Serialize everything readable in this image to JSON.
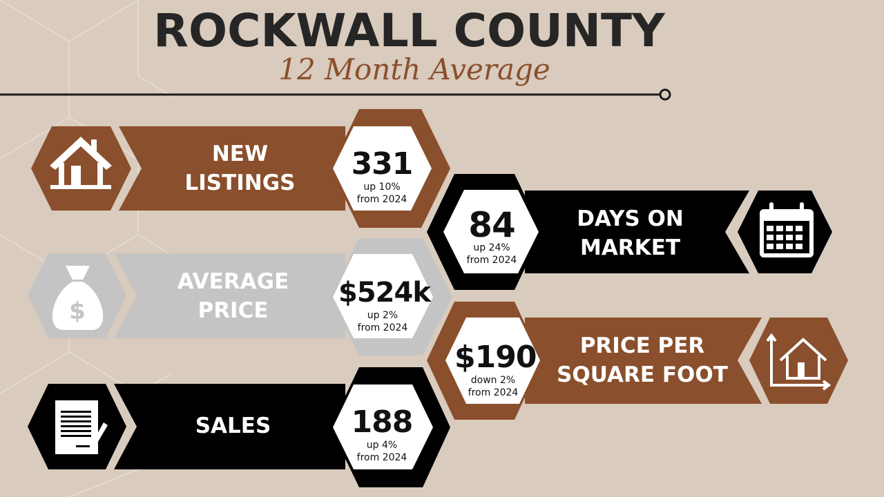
{
  "header": {
    "title": "ROCKWALL COUNTY",
    "subtitle": "12 Month Average"
  },
  "colors": {
    "background": "#d9cbbd",
    "brown": "#8a4f2c",
    "gray": "#c4c4c4",
    "black": "#000000",
    "title": "#262626"
  },
  "metrics": [
    {
      "label_line1": "NEW",
      "label_line2": "LISTINGS",
      "value": "331",
      "change": "up 10%",
      "period": "from 2024",
      "icon": "house-icon",
      "color": "brown"
    },
    {
      "label_line1": "AVERAGE",
      "label_line2": "PRICE",
      "value": "$524k",
      "change": "up 2%",
      "period": "from 2024",
      "icon": "money-bag-icon",
      "color": "gray"
    },
    {
      "label_line1": "SALES",
      "label_line2": "",
      "value": "188",
      "change": "up 4%",
      "period": "from 2024",
      "icon": "document-sign-icon",
      "color": "black"
    },
    {
      "label_line1": "DAYS ON",
      "label_line2": "MARKET",
      "value": "84",
      "change": "up 24%",
      "period": "from 2024",
      "icon": "calendar-icon",
      "color": "black"
    },
    {
      "label_line1": "PRICE PER",
      "label_line2": "SQUARE FOOT",
      "value": "$190",
      "change": "down 2%",
      "period": "from 2024",
      "icon": "house-chart-icon",
      "color": "brown"
    }
  ]
}
